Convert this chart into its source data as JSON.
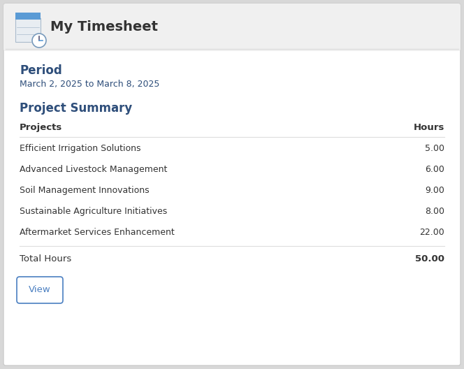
{
  "header_title": "My Timesheet",
  "header_bg": "#f0f0f0",
  "main_bg": "#ffffff",
  "outer_bg": "#d8d8d8",
  "border_color": "#cccccc",
  "period_label": "Period",
  "period_value": "March 2, 2025 to March 8, 2025",
  "summary_title": "Project Summary",
  "col_project": "Projects",
  "col_hours": "Hours",
  "projects": [
    "Efficient Irrigation Solutions",
    "Advanced Livestock Management",
    "Soil Management Innovations",
    "Sustainable Agriculture Initiatives",
    "Aftermarket Services Enhancement"
  ],
  "hours": [
    "5.00",
    "6.00",
    "9.00",
    "8.00",
    "22.00"
  ],
  "total_label": "Total Hours",
  "total_value": "50.00",
  "button_label": "View",
  "button_color": "#4a7fc1",
  "heading_color": "#2e4e7a",
  "text_color": "#333333",
  "separator_color": "#dddddd",
  "fig_width": 6.64,
  "fig_height": 5.28,
  "dpi": 100
}
